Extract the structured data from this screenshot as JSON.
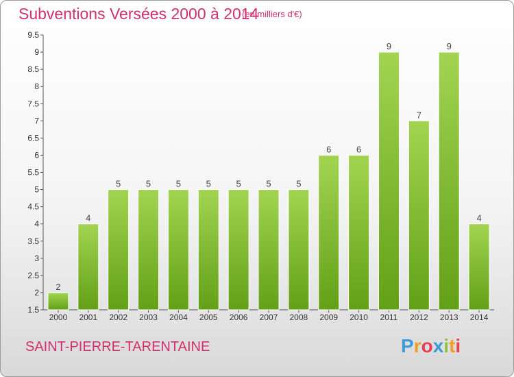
{
  "header": {
    "title": "Subventions Versées 2000 à 2014",
    "subtitle": "(en milliers d'€)"
  },
  "footer": {
    "commune": "SAINT-PIERRE-TARENTAINE",
    "logo_letters": [
      "P",
      "r",
      "o",
      "x",
      "i",
      "t",
      "i"
    ],
    "logo_colors": [
      "#3b9bd8",
      "#f0a020",
      "#e84050",
      "#3b9bd8",
      "#8cc63f",
      "#f0a020",
      "#e84050"
    ]
  },
  "colors": {
    "bar_top": "#a2d452",
    "bar_bottom": "#62a017",
    "accent": "#d0306a"
  },
  "chart_data": {
    "type": "bar",
    "title": "Subventions Versées 2000 à 2014",
    "subtitle": "(en milliers d'€)",
    "categories": [
      "2000",
      "2001",
      "2002",
      "2003",
      "2004",
      "2005",
      "2006",
      "2007",
      "2008",
      "2009",
      "2010",
      "2011",
      "2012",
      "2013",
      "2014"
    ],
    "values": [
      2,
      4,
      5,
      5,
      5,
      5,
      5,
      5,
      5,
      6,
      6,
      9,
      7,
      9,
      4
    ],
    "ylim": [
      1.5,
      9.5
    ],
    "yticks": [
      "1.5",
      "2",
      "2.5",
      "3",
      "3.5",
      "4",
      "4.5",
      "5",
      "5.5",
      "6",
      "6.5",
      "7",
      "7.5",
      "8",
      "8.5",
      "9",
      "9.5"
    ],
    "grid": false,
    "xlabel": "",
    "ylabel": ""
  }
}
